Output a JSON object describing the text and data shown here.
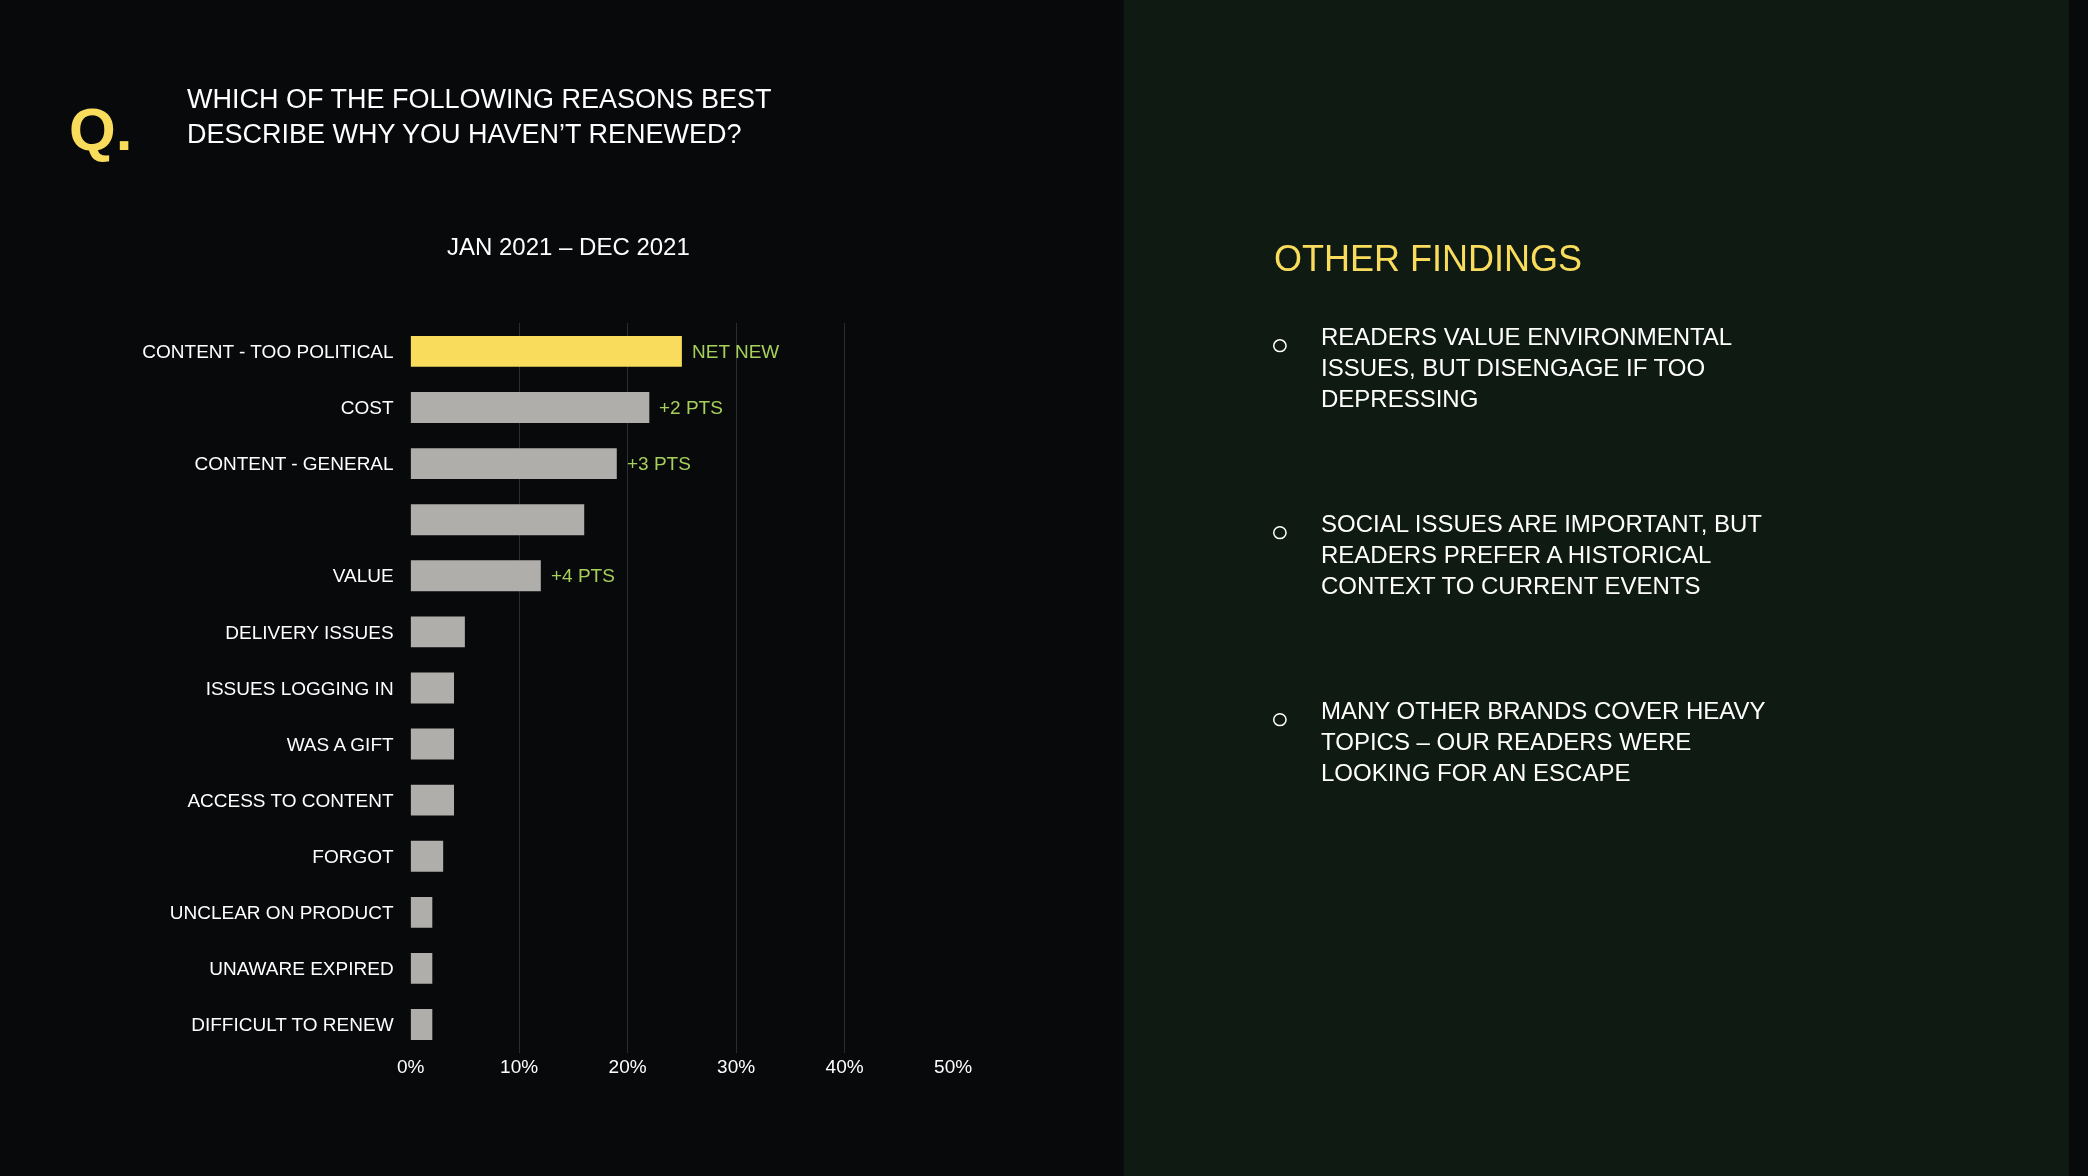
{
  "chart_data": {
    "type": "bar",
    "orientation": "horizontal",
    "title": "WHICH OF THE FOLLOWING REASONS BEST DESCRIBE WHY YOU HAVEN’T RENEWED?",
    "subtitle": "JAN 2021 – DEC 2021",
    "categories": [
      "CONTENT - TOO POLITICAL",
      "COST",
      "CONTENT - GENERAL",
      null,
      "VALUE",
      "DELIVERY ISSUES",
      "ISSUES LOGGING IN",
      "WAS A GIFT",
      "ACCESS TO CONTENT",
      "FORGOT",
      "UNCLEAR ON PRODUCT",
      "UNAWARE EXPIRED",
      "DIFFICULT TO RENEW"
    ],
    "values": [
      25,
      22,
      19,
      16,
      12,
      5,
      4,
      4,
      4,
      3,
      2,
      2,
      2
    ],
    "colors": [
      "#f9dc5c",
      "#b0aeab",
      "#b0aeab",
      "#b0aeab",
      "#b0aeab",
      "#b0aeab",
      "#b0aeab",
      "#b0aeab",
      "#b0aeab",
      "#b0aeab",
      "#b0aeab",
      "#b0aeab",
      "#b0aeab"
    ],
    "xlim": [
      0,
      50
    ],
    "xticks": [
      {
        "value": 0,
        "label": "0%"
      },
      {
        "value": 10,
        "label": "10%"
      },
      {
        "value": 20,
        "label": "20%"
      },
      {
        "value": 30,
        "label": "30%"
      },
      {
        "value": 40,
        "label": "40%"
      },
      {
        "value": 50,
        "label": "50%"
      }
    ],
    "grid": "x",
    "annotations": [
      "Q.",
      "OTHER FINDINGS",
      {
        "text": "NET NEW",
        "x": 25,
        "y": "CONTENT - TOO POLITICAL"
      },
      {
        "text": "+2 PTS",
        "x": 22,
        "y": "COST"
      },
      {
        "text": "+3 PTS",
        "x": 19,
        "y": "CONTENT - GENERAL"
      },
      {
        "text": "+4 PTS",
        "x": 12,
        "y": "VALUE"
      },
      "READERS VALUE ENVIRONMENTAL ISSUES, BUT DISENGAGE IF TOO DEPRESSING",
      "SOCIAL ISSUES ARE IMPORTANT, BUT READERS PREFER A HISTORICAL CONTEXT TO CURRENT EVENTS",
      "MANY OTHER BRANDS COVER HEAVY TOPICS – OUR READERS WERE LOOKING FOR AN ESCAPE"
    ]
  }
}
